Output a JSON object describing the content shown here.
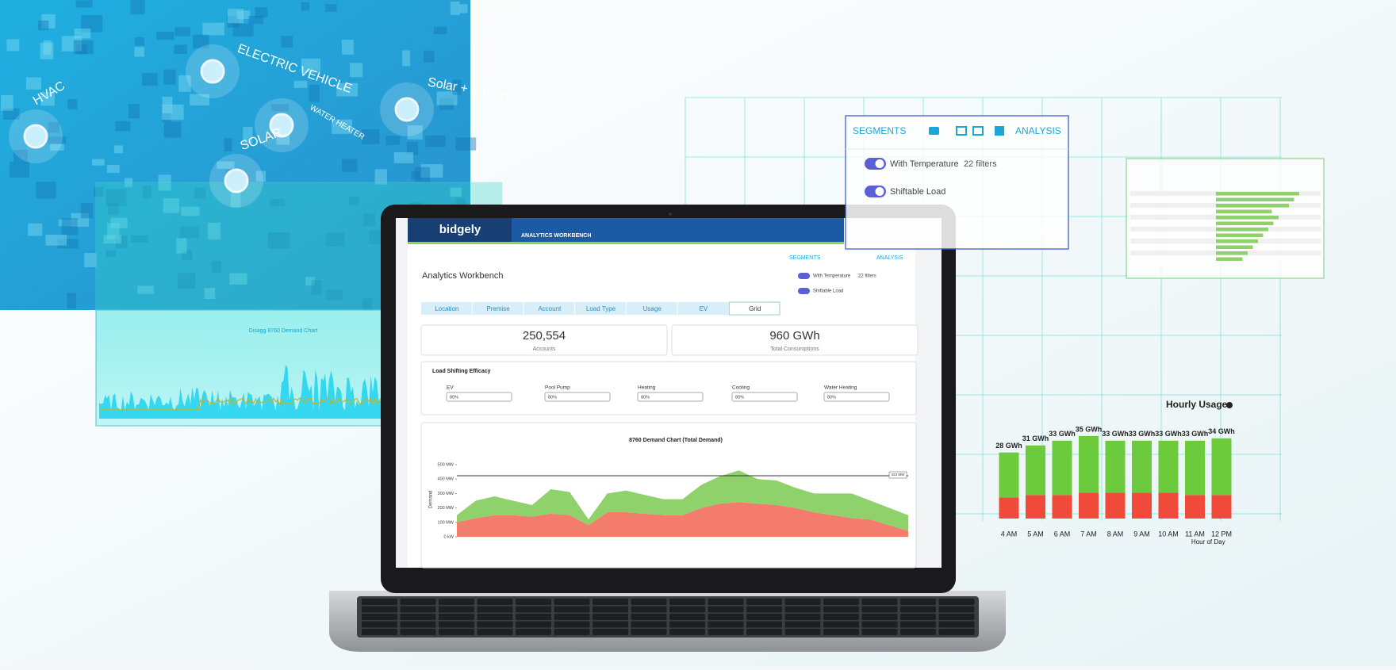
{
  "overlay": {
    "labels": [
      "HVAC",
      "ELECTRIC VEHICLE",
      "WATER HEATER",
      "Solar + Battery",
      "SOLAR"
    ],
    "disagg_title": "Disagg 8760 Demand Chart"
  },
  "segments_panel": {
    "segments": "SEGMENTS",
    "analysis": "ANALYSIS",
    "rows": [
      {
        "label": "With Temperature",
        "filters": "22 filters"
      },
      {
        "label": "Shiftable Load"
      }
    ]
  },
  "app": {
    "brand": "bidgely",
    "header": "ANALYTICS WORKBENCH",
    "title": "Analytics Workbench",
    "segments": "SEGMENTS",
    "analysis": "ANALYSIS",
    "toggles": [
      "With Temperature",
      "Shiftable Load"
    ],
    "filters": "22 filters",
    "tabs": [
      "Location",
      "Premise",
      "Account",
      "Load Type",
      "Usage",
      "EV",
      "Grid"
    ],
    "active_tab": 6,
    "kpis": [
      {
        "value": "250,554",
        "label": "Accounts"
      },
      {
        "value": "960 GWh",
        "label": "Total Consumptions"
      }
    ],
    "efficacy": {
      "title": "Load Shifting Efficacy",
      "fields": [
        {
          "label": "EV",
          "value": "80%"
        },
        {
          "label": "Pool Pump",
          "value": "80%"
        },
        {
          "label": "Heating",
          "value": "80%"
        },
        {
          "label": "Cooling",
          "value": "80%"
        },
        {
          "label": "Water Heating",
          "value": "80%"
        }
      ]
    },
    "demand_chart": {
      "type": "area",
      "title": "8760 Demand Chart (Total Demand)",
      "y_label": "Demand",
      "ylim": [
        0,
        500
      ],
      "yticks": [
        {
          "value": 0,
          "label": "0 kW"
        },
        {
          "value": 100,
          "label": "100 MW"
        },
        {
          "value": 200,
          "label": "200 MW"
        },
        {
          "value": 300,
          "label": "300 MW"
        },
        {
          "value": 400,
          "label": "400 MW"
        },
        {
          "value": 500,
          "label": "500 MW"
        }
      ],
      "threshold": {
        "value": 423,
        "label": "423 MW"
      },
      "series": [
        {
          "color": "#f47c6c",
          "values": [
            100,
            130,
            150,
            150,
            140,
            160,
            150,
            80,
            170,
            170,
            160,
            150,
            150,
            200,
            230,
            240,
            230,
            220,
            200,
            170,
            150,
            130,
            120,
            80,
            40
          ]
        },
        {
          "color": "#8fd16a",
          "values": [
            50,
            120,
            130,
            100,
            80,
            170,
            160,
            40,
            130,
            150,
            130,
            110,
            110,
            160,
            190,
            220,
            170,
            170,
            140,
            130,
            150,
            170,
            130,
            120,
            110
          ]
        }
      ]
    }
  },
  "hourly_usage": {
    "type": "bar",
    "title": "Hourly Usage",
    "x_label": "Hour of Day",
    "ylim": [
      0,
      40
    ],
    "categories": [
      "4 AM",
      "5 AM",
      "6 AM",
      "7 AM",
      "8 AM",
      "9 AM",
      "10 AM",
      "11 AM",
      "12 PM"
    ],
    "totals": [
      28,
      31,
      33,
      35,
      33,
      33,
      33,
      33,
      34
    ],
    "value_labels": [
      "28 GWh",
      "31 GWh",
      "33 GWh",
      "35 GWh",
      "33 GWh",
      "33 GWh",
      "33 GWh",
      "33 GWh",
      "34 GWh"
    ],
    "series": [
      {
        "color": "#f04a3a",
        "values": [
          9,
          10,
          10,
          11,
          11,
          11,
          11,
          10,
          10
        ]
      },
      {
        "color": "#6ccb3c",
        "values": [
          19,
          21,
          23,
          24,
          22,
          22,
          22,
          23,
          24
        ]
      }
    ]
  }
}
